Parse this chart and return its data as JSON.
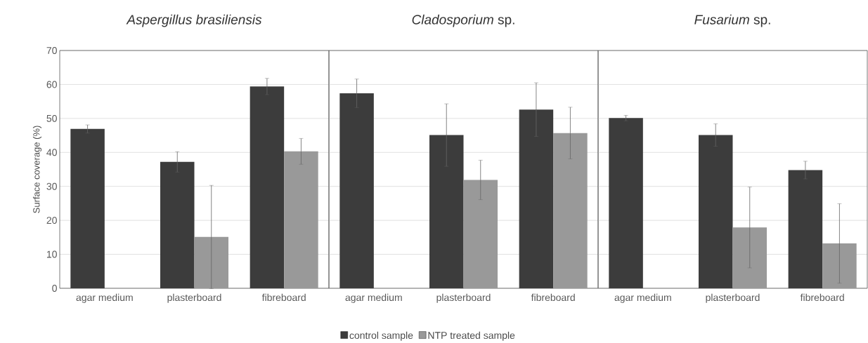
{
  "chart_data": [
    {
      "type": "bar",
      "title": "*Aspergillus brasiliensis*",
      "ylabel": "Surface coverage (%)",
      "categories": [
        "agar medium",
        "plasterboard",
        "fibreboard"
      ],
      "ylim": [
        0,
        70
      ],
      "yticks": [
        0,
        10,
        20,
        30,
        40,
        50,
        60,
        70
      ],
      "grid": "y",
      "series": [
        {
          "color": "#3c3c3c",
          "values": [
            46.9,
            37.2,
            59.4
          ],
          "errors": [
            1.2,
            3.0,
            2.4
          ]
        },
        {
          "color": "#999999",
          "values": [
            null,
            15.1,
            40.3
          ],
          "errors": [
            null,
            15.2,
            3.8
          ]
        }
      ]
    },
    {
      "type": "bar",
      "title": "*Cladosporium* sp.",
      "categories": [
        "agar medium",
        "plasterboard",
        "fibreboard"
      ],
      "ylim": [
        0,
        70
      ],
      "yticks": [
        0,
        10,
        20,
        30,
        40,
        50,
        60,
        70
      ],
      "grid": "y",
      "tick_labels": "x",
      "legend": "bottom",
      "series": [
        {
          "name": "control sample",
          "color": "#3c3c3c",
          "values": [
            57.4,
            45.1,
            52.6
          ],
          "errors": [
            4.2,
            9.2,
            7.9
          ]
        },
        {
          "name": "NTP treated sample",
          "color": "#999999",
          "values": [
            null,
            31.9,
            45.7
          ],
          "errors": [
            null,
            5.8,
            7.6
          ]
        }
      ]
    },
    {
      "type": "bar",
      "title": "*Fusarium* sp.",
      "categories": [
        "agar medium",
        "plasterboard",
        "fibreboard"
      ],
      "ylim": [
        0,
        70
      ],
      "yticks": [
        0,
        10,
        20,
        30,
        40,
        50,
        60,
        70
      ],
      "grid": "y",
      "tick_labels": "x",
      "series": [
        {
          "color": "#3c3c3c",
          "values": [
            50.1,
            45.1,
            34.8
          ],
          "errors": [
            0.8,
            3.3,
            2.6
          ]
        },
        {
          "color": "#999999",
          "values": [
            null,
            17.9,
            13.2
          ],
          "errors": [
            null,
            11.9,
            11.7
          ]
        }
      ]
    }
  ]
}
